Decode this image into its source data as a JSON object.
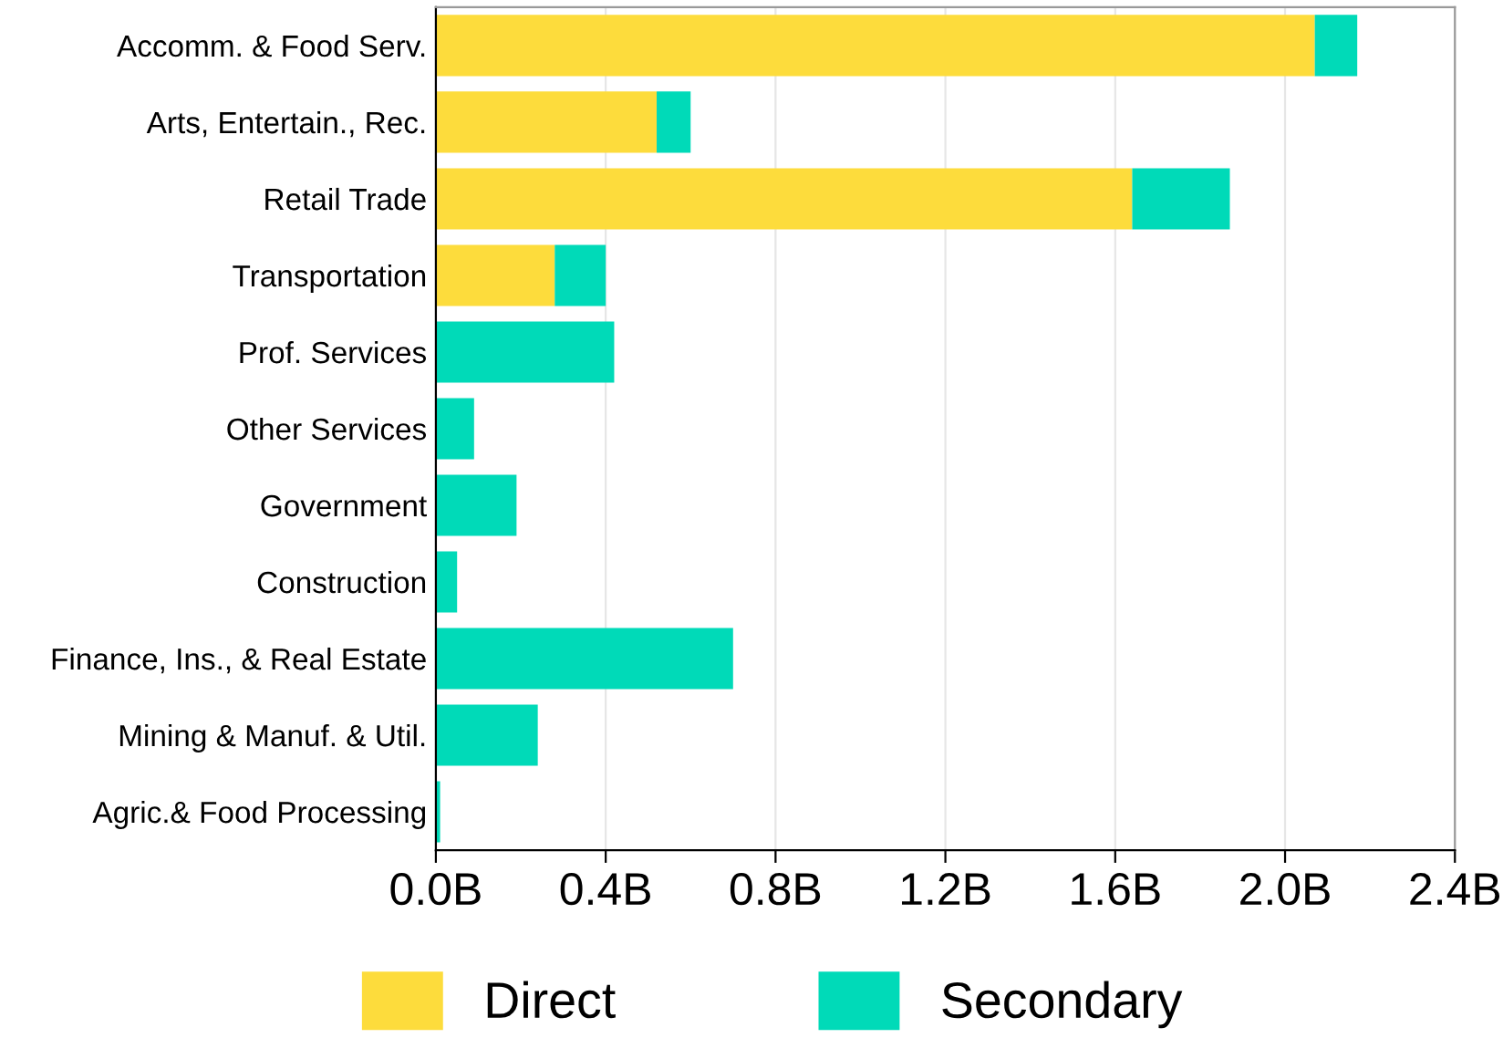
{
  "chart_data": {
    "type": "bar",
    "orientation": "horizontal",
    "stacked": true,
    "categories": [
      "Accomm. & Food Serv.",
      "Arts, Entertain., Rec.",
      "Retail Trade",
      "Transportation",
      "Prof. Services",
      "Other Services",
      "Government",
      "Construction",
      "Finance, Ins., & Real Estate",
      "Mining & Manuf. & Util.",
      "Agric.& Food Processing"
    ],
    "series": [
      {
        "name": "Direct",
        "color": "#fddc3c",
        "values": [
          2.07,
          0.52,
          1.64,
          0.28,
          0,
          0,
          0,
          0,
          0,
          0,
          0
        ]
      },
      {
        "name": "Secondary",
        "color": "#00dab8",
        "values": [
          0.1,
          0.08,
          0.23,
          0.12,
          0.42,
          0.09,
          0.19,
          0.05,
          0.7,
          0.24,
          0.01
        ]
      }
    ],
    "xlim": [
      0,
      2.4
    ],
    "xticks": [
      {
        "value": 0,
        "label": "0.0B"
      },
      {
        "value": 0.4,
        "label": "0.4B"
      },
      {
        "value": 0.8,
        "label": "0.8B"
      },
      {
        "value": 1.2,
        "label": "1.2B"
      },
      {
        "value": 1.6,
        "label": "1.6B"
      },
      {
        "value": 2.0,
        "label": "2.0B"
      },
      {
        "value": 2.4,
        "label": "2.4B"
      }
    ],
    "grid": "x",
    "legend": "bottom"
  }
}
